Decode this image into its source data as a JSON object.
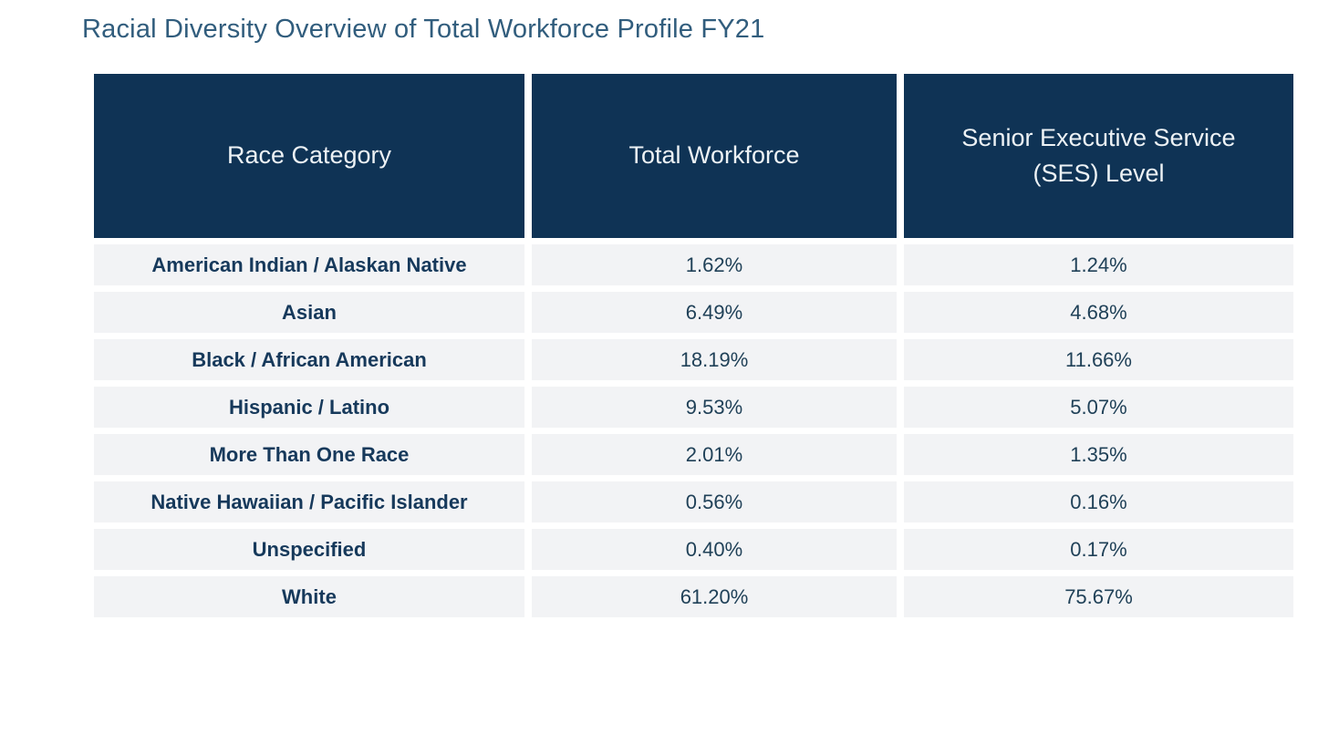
{
  "title": "Racial Diversity Overview of Total Workforce Profile FY21",
  "colors": {
    "header_background": "#0F3355",
    "header_text": "#EDF2F5",
    "row_background": "#F2F3F5",
    "category_text": "#16395B",
    "value_text": "#204158",
    "title_text": "#315D7D"
  },
  "chart_data": {
    "type": "table",
    "title": "Racial Diversity Overview of Total Workforce Profile FY21",
    "columns": [
      "Race Category",
      "Total Workforce",
      "Senior Executive Service (SES) Level"
    ],
    "rows": [
      {
        "category": "American Indian / Alaskan Native",
        "total_workforce": "1.62%",
        "ses_level": "1.24%"
      },
      {
        "category": "Asian",
        "total_workforce": "6.49%",
        "ses_level": "4.68%"
      },
      {
        "category": "Black / African American",
        "total_workforce": "18.19%",
        "ses_level": "11.66%"
      },
      {
        "category": "Hispanic / Latino",
        "total_workforce": "9.53%",
        "ses_level": "5.07%"
      },
      {
        "category": "More Than One Race",
        "total_workforce": "2.01%",
        "ses_level": "1.35%"
      },
      {
        "category": "Native Hawaiian / Pacific Islander",
        "total_workforce": "0.56%",
        "ses_level": "0.16%"
      },
      {
        "category": "Unspecified",
        "total_workforce": "0.40%",
        "ses_level": "0.17%"
      },
      {
        "category": "White",
        "total_workforce": "61.20%",
        "ses_level": "75.67%"
      }
    ]
  }
}
